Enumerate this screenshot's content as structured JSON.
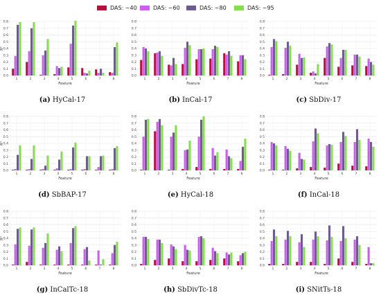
{
  "legend": [
    {
      "label": "DAS: ~40",
      "color": "#b5113e"
    },
    {
      "label": "DAS: ~60",
      "color": "#cc5ef0"
    },
    {
      "label": "DAS: ~80",
      "color": "#6d5c8d"
    },
    {
      "label": "DAS: ~95",
      "color": "#86dd4f"
    }
  ],
  "chart_data": [
    {
      "type": "bar",
      "panel_letter": "(a)",
      "panel_name": "HyCal-17",
      "categories": [
        "1",
        "2",
        "3",
        "4",
        "5",
        "6",
        "7",
        "8"
      ],
      "xlabel": "Feature",
      "ylabel": "R²",
      "ylim": [
        0,
        0.8
      ],
      "yticks": [
        "0.0",
        "0.1",
        "0.2",
        "0.3",
        "0.4",
        "0.5",
        "0.6",
        "0.7",
        "0.8"
      ],
      "series": [
        {
          "name": "DAS: ~40",
          "values": [
            0.1,
            0.2,
            0.01,
            0.02,
            0.12,
            0.11,
            0.09,
            0.05
          ]
        },
        {
          "name": "DAS: ~60",
          "values": [
            0.29,
            0.36,
            0.3,
            0.14,
            0.47,
            0.04,
            0.04,
            0.04
          ]
        },
        {
          "name": "DAS: ~80",
          "values": [
            0.75,
            0.7,
            0.37,
            0.11,
            0.74,
            0.03,
            0.1,
            0.42
          ]
        },
        {
          "name": "DAS: ~95",
          "values": [
            0.79,
            0.79,
            0.54,
            0.13,
            0.81,
            0.07,
            0.04,
            0.49
          ]
        }
      ]
    },
    {
      "type": "bar",
      "panel_letter": "(b)",
      "panel_name": "InCal-17",
      "categories": [
        "1",
        "2",
        "3",
        "4",
        "5",
        "6",
        "7",
        "8"
      ],
      "xlabel": "Feature",
      "ylabel": "",
      "ylim": [
        0,
        0.8
      ],
      "yticks": [
        "0.0",
        "0.1",
        "0.2",
        "0.3",
        "0.4",
        "0.5",
        "0.6",
        "0.7",
        "0.8"
      ],
      "series": [
        {
          "name": "DAS: ~40",
          "values": [
            0.23,
            0.33,
            0.16,
            0.17,
            0.24,
            0.25,
            0.33,
            0.21
          ]
        },
        {
          "name": "DAS: ~60",
          "values": [
            0.42,
            0.34,
            0.15,
            0.41,
            0.39,
            0.39,
            0.31,
            0.3
          ]
        },
        {
          "name": "DAS: ~80",
          "values": [
            0.4,
            0.36,
            0.26,
            0.5,
            0.39,
            0.44,
            0.36,
            0.3
          ]
        },
        {
          "name": "DAS: ~95",
          "values": [
            0.36,
            0.29,
            0.17,
            0.45,
            0.4,
            0.42,
            0.29,
            0.24
          ]
        }
      ]
    },
    {
      "type": "bar",
      "panel_letter": "(c)",
      "panel_name": "SbDiv-17",
      "categories": [
        "1",
        "2",
        "3",
        "4",
        "5",
        "6",
        "7",
        "8"
      ],
      "xlabel": "Feature",
      "ylabel": "",
      "ylim": [
        0,
        0.8
      ],
      "yticks": [
        "0.0",
        "0.1",
        "0.2",
        "0.3",
        "0.4",
        "0.5",
        "0.6",
        "0.7",
        "0.8"
      ],
      "series": [
        {
          "name": "DAS: ~40",
          "values": [
            0.01,
            0.02,
            0.16,
            0.04,
            0.26,
            0.13,
            0.15,
            0.14
          ]
        },
        {
          "name": "DAS: ~60",
          "values": [
            0.42,
            0.41,
            0.32,
            0.06,
            0.43,
            0.26,
            0.31,
            0.25
          ]
        },
        {
          "name": "DAS: ~80",
          "values": [
            0.54,
            0.5,
            0.26,
            0.03,
            0.48,
            0.38,
            0.31,
            0.2
          ]
        },
        {
          "name": "DAS: ~95",
          "values": [
            0.51,
            0.44,
            0.27,
            0.17,
            0.46,
            0.38,
            0.28,
            0.16
          ]
        }
      ]
    },
    {
      "type": "bar",
      "panel_letter": "(d)",
      "panel_name": "SbBAP-17",
      "categories": [
        "1",
        "2",
        "3",
        "4",
        "5",
        "6",
        "7",
        "8"
      ],
      "xlabel": "Feature",
      "ylabel": "R²",
      "ylim": [
        0,
        0.8
      ],
      "yticks": [
        "0.0",
        "0.1",
        "0.2",
        "0.3",
        "0.4",
        "0.5",
        "0.6",
        "0.7",
        "0.8"
      ],
      "series": [
        {
          "name": "DAS: ~40",
          "values": [
            0.01,
            0.01,
            0.01,
            0.01,
            0.01,
            0.01,
            0.01,
            0.01
          ]
        },
        {
          "name": "DAS: ~60",
          "values": [
            0.02,
            0.02,
            0.02,
            0.03,
            0.02,
            0.02,
            0.05,
            0.02
          ]
        },
        {
          "name": "DAS: ~80",
          "values": [
            0.23,
            0.17,
            0.07,
            0.16,
            0.34,
            0.21,
            0.21,
            0.33
          ]
        },
        {
          "name": "DAS: ~95",
          "values": [
            0.37,
            0.37,
            0.22,
            0.28,
            0.41,
            0.21,
            0.22,
            0.36
          ]
        }
      ]
    },
    {
      "type": "bar",
      "panel_letter": "(e)",
      "panel_name": "HyCal-18",
      "categories": [
        "1",
        "2",
        "3",
        "4",
        "5",
        "6",
        "7",
        "8"
      ],
      "xlabel": "Feature",
      "ylabel": "",
      "ylim": [
        0,
        0.8
      ],
      "yticks": [
        "0.0",
        "0.1",
        "0.2",
        "0.3",
        "0.4",
        "0.5",
        "0.6",
        "0.7",
        "0.8"
      ],
      "series": [
        {
          "name": "DAS: ~40",
          "values": [
            0.01,
            0.58,
            0.01,
            0.02,
            0.05,
            0.02,
            0.02,
            0.02
          ]
        },
        {
          "name": "DAS: ~60",
          "values": [
            0.5,
            0.72,
            0.5,
            0.3,
            0.5,
            0.33,
            0.31,
            0.14
          ]
        },
        {
          "name": "DAS: ~80",
          "values": [
            0.75,
            0.76,
            0.56,
            0.31,
            0.75,
            0.22,
            0.21,
            0.35
          ]
        },
        {
          "name": "DAS: ~95",
          "values": [
            0.76,
            0.67,
            0.67,
            0.44,
            0.8,
            0.27,
            0.18,
            0.47
          ]
        }
      ]
    },
    {
      "type": "bar",
      "panel_letter": "(f)",
      "panel_name": "InCal-18",
      "categories": [
        "1",
        "2",
        "3",
        "4",
        "5",
        "6",
        "7",
        "8"
      ],
      "xlabel": "Feature",
      "ylabel": "",
      "ylim": [
        0,
        0.8
      ],
      "yticks": [
        "0.0",
        "0.1",
        "0.2",
        "0.3",
        "0.4",
        "0.5",
        "0.6",
        "0.7",
        "0.8"
      ],
      "series": [
        {
          "name": "DAS: ~40",
          "values": [
            0.01,
            0.01,
            0.03,
            0.05,
            0.04,
            0.1,
            0.07,
            0.06
          ]
        },
        {
          "name": "DAS: ~60",
          "values": [
            0.42,
            0.36,
            0.26,
            0.43,
            0.37,
            0.42,
            0.42,
            0.47
          ]
        },
        {
          "name": "DAS: ~80",
          "values": [
            0.4,
            0.32,
            0.17,
            0.62,
            0.39,
            0.57,
            0.61,
            0.42
          ]
        },
        {
          "name": "DAS: ~95",
          "values": [
            0.37,
            0.29,
            0.16,
            0.55,
            0.38,
            0.51,
            0.45,
            0.35
          ]
        }
      ]
    },
    {
      "type": "bar",
      "panel_letter": "(g)",
      "panel_name": "InCalTc-18",
      "categories": [
        "1",
        "2",
        "3",
        "4",
        "5",
        "6",
        "7",
        "8"
      ],
      "xlabel": "Feature",
      "ylabel": "R²",
      "ylim": [
        0,
        0.8
      ],
      "yticks": [
        "0.0",
        "0.1",
        "0.2",
        "0.3",
        "0.4",
        "0.5",
        "0.6",
        "0.7",
        "0.8"
      ],
      "series": [
        {
          "name": "DAS: ~40",
          "values": [
            0.01,
            0.05,
            0.01,
            0.01,
            0.01,
            0.01,
            0.01,
            0.01
          ]
        },
        {
          "name": "DAS: ~60",
          "values": [
            0.31,
            0.29,
            0.26,
            0.23,
            0.33,
            0.24,
            0.22,
            0.18
          ]
        },
        {
          "name": "DAS: ~80",
          "values": [
            0.54,
            0.53,
            0.33,
            0.28,
            0.55,
            0.27,
            0.01,
            0.3
          ]
        },
        {
          "name": "DAS: ~95",
          "values": [
            0.56,
            0.56,
            0.47,
            0.21,
            0.58,
            0.07,
            0.09,
            0.35
          ]
        }
      ]
    },
    {
      "type": "bar",
      "panel_letter": "(h)",
      "panel_name": "SbDivTc-18",
      "categories": [
        "1",
        "2",
        "3",
        "4",
        "5",
        "6",
        "7",
        "8"
      ],
      "xlabel": "Feature",
      "ylabel": "",
      "ylim": [
        0,
        0.8
      ],
      "yticks": [
        "0.0",
        "0.1",
        "0.2",
        "0.3",
        "0.4",
        "0.5",
        "0.6",
        "0.7",
        "0.8"
      ],
      "series": [
        {
          "name": "DAS: ~40",
          "values": [
            0.02,
            0.08,
            0.1,
            0.06,
            0.06,
            0.08,
            0.1,
            0.06
          ]
        },
        {
          "name": "DAS: ~60",
          "values": [
            0.42,
            0.38,
            0.31,
            0.3,
            0.42,
            0.26,
            0.19,
            0.15
          ]
        },
        {
          "name": "DAS: ~80",
          "values": [
            0.42,
            0.38,
            0.28,
            0.23,
            0.43,
            0.21,
            0.16,
            0.18
          ]
        },
        {
          "name": "DAS: ~95",
          "values": [
            0.39,
            0.33,
            0.24,
            0.22,
            0.4,
            0.18,
            0.19,
            0.2
          ]
        }
      ]
    },
    {
      "type": "bar",
      "panel_letter": "(i)",
      "panel_name": "SNitTs-18",
      "categories": [
        "1",
        "2",
        "3",
        "4",
        "5",
        "6",
        "7",
        "8"
      ],
      "xlabel": "Feature",
      "ylabel": "",
      "ylim": [
        0,
        0.8
      ],
      "yticks": [
        "0.0",
        "0.1",
        "0.2",
        "0.3",
        "0.4",
        "0.5",
        "0.6",
        "0.7",
        "0.8"
      ],
      "series": [
        {
          "name": "DAS: ~40",
          "values": [
            0.02,
            0.02,
            0.05,
            0.05,
            0.02,
            0.1,
            0.05,
            0.02
          ]
        },
        {
          "name": "DAS: ~60",
          "values": [
            0.36,
            0.38,
            0.34,
            0.38,
            0.37,
            0.36,
            0.38,
            0.27
          ]
        },
        {
          "name": "DAS: ~80",
          "values": [
            0.53,
            0.51,
            0.46,
            0.5,
            0.59,
            0.58,
            0.43,
            0.03
          ]
        },
        {
          "name": "DAS: ~95",
          "values": [
            0.43,
            0.43,
            0.27,
            0.43,
            0.42,
            0.4,
            0.3,
            0.03
          ]
        }
      ]
    }
  ]
}
